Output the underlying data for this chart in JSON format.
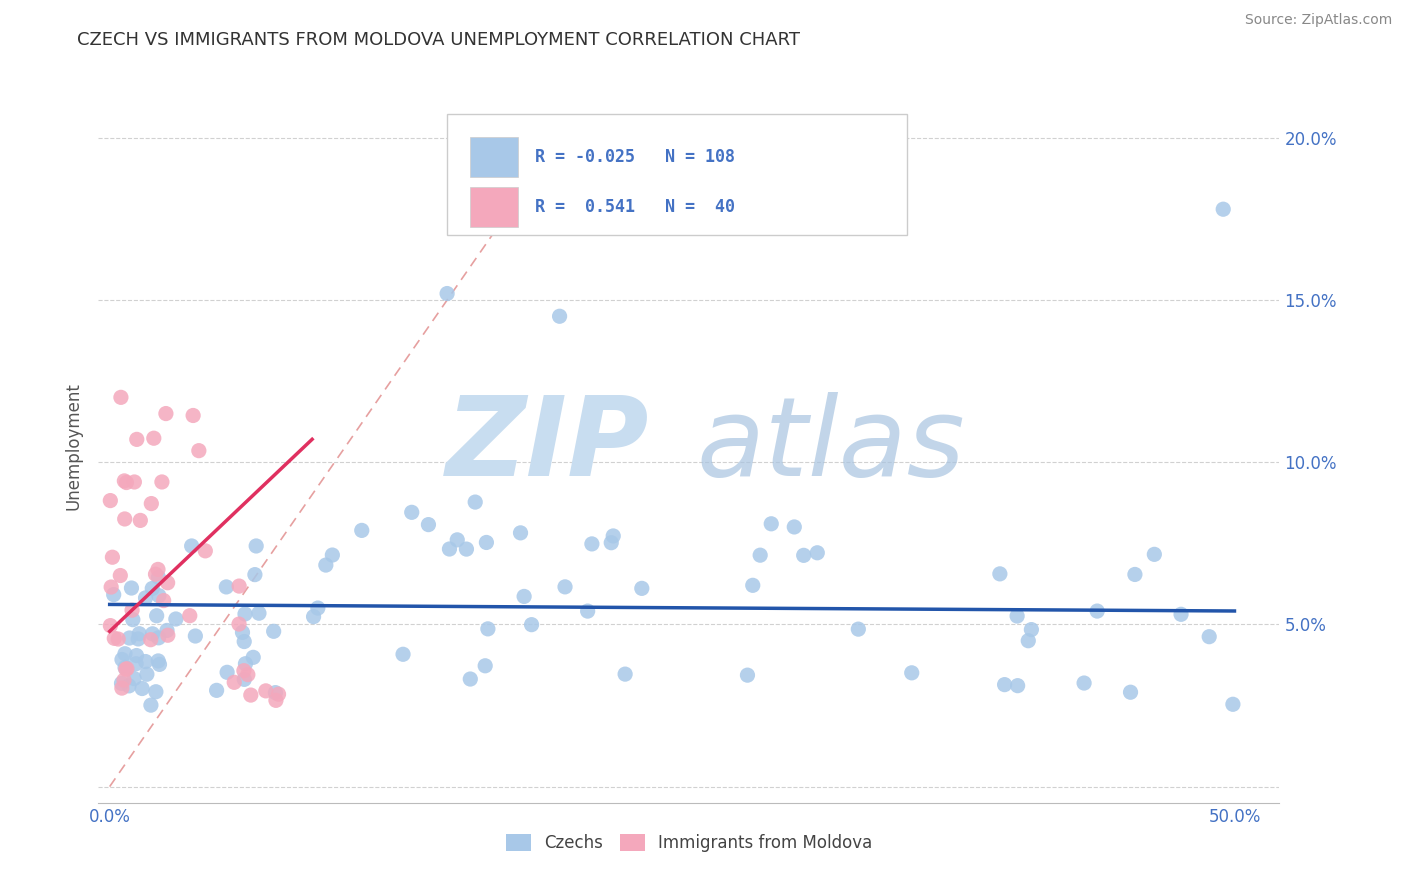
{
  "title": "CZECH VS IMMIGRANTS FROM MOLDOVA UNEMPLOYMENT CORRELATION CHART",
  "source": "Source: ZipAtlas.com",
  "ylabel": "Unemployment",
  "xlim": [
    -0.005,
    0.52
  ],
  "ylim": [
    -0.005,
    0.215
  ],
  "xticks": [
    0.0,
    0.1,
    0.2,
    0.3,
    0.4,
    0.5
  ],
  "yticks": [
    0.0,
    0.05,
    0.1,
    0.15,
    0.2
  ],
  "xticklabels": [
    "0.0%",
    "",
    "",
    "",
    "",
    "50.0%"
  ],
  "yticklabels_right": [
    "",
    "5.0%",
    "10.0%",
    "15.0%",
    "20.0%"
  ],
  "czech_color": "#a8c8e8",
  "moldova_color": "#f4a8bc",
  "czech_line_color": "#2255aa",
  "moldova_line_color": "#e03060",
  "ref_line_color": "#e08888",
  "watermark_zip_color": "#c8ddf0",
  "watermark_atlas_color": "#a8c4e0",
  "legend_box_color": "#f0f4f8",
  "legend_border_color": "#cccccc",
  "title_color": "#333333",
  "source_color": "#888888",
  "tick_label_color": "#4472c4",
  "ylabel_color": "#555555",
  "grid_color": "#cccccc",
  "note_czech_r": "-0.025",
  "note_czech_n": "108",
  "note_moldova_r": "0.541",
  "note_moldova_n": "40"
}
